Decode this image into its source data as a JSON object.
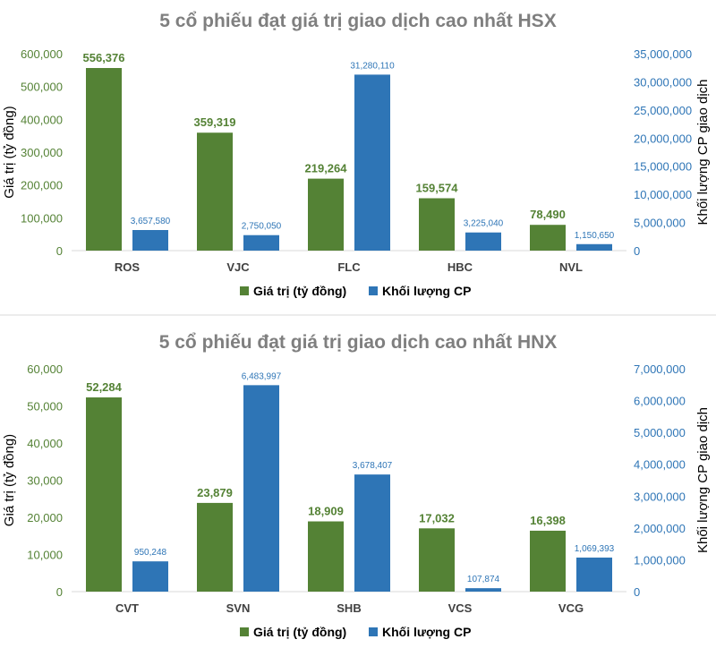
{
  "colors": {
    "value": "#548235",
    "volume": "#2e75b6",
    "left_axis": "#548235",
    "right_axis": "#2e75b6",
    "separator": "#d9d9d9"
  },
  "chart_data": [
    {
      "type": "bar",
      "title": "5 cổ phiếu đạt giá trị giao dịch cao nhất HSX",
      "categories": [
        "ROS",
        "VJC",
        "FLC",
        "HBC",
        "NVL"
      ],
      "series": [
        {
          "name": "Giá trị (tỷ đồng)",
          "axis": "left",
          "values": [
            556376,
            359319,
            219264,
            159574,
            78490
          ],
          "labels": [
            "556,376",
            "359,319",
            "219,264",
            "159,574",
            "78,490"
          ]
        },
        {
          "name": "Khối lượng CP",
          "axis": "right",
          "values": [
            3657580,
            2750050,
            31280110,
            3225040,
            1150650
          ],
          "labels": [
            "3,657,580",
            "2,750,050",
            "31,280,110",
            "3,225,040",
            "1,150,650"
          ]
        }
      ],
      "ylabel": "Giá trị (tỷ đồng)",
      "ylabel_right": "Khối lượng CP giao dịch",
      "ylim": [
        0,
        600000
      ],
      "ylim_right": [
        0,
        35000000
      ],
      "yticks": [
        "0",
        "100,000",
        "200,000",
        "300,000",
        "400,000",
        "500,000",
        "600,000"
      ],
      "yticks_right": [
        "0",
        "5,000,000",
        "10,000,000",
        "15,000,000",
        "20,000,000",
        "25,000,000",
        "30,000,000",
        "35,000,000"
      ],
      "grid": false,
      "legend": "bottom"
    },
    {
      "type": "bar",
      "title": "5 cổ phiếu đạt giá trị giao dịch cao nhất HNX",
      "categories": [
        "CVT",
        "SVN",
        "SHB",
        "VCS",
        "VCG"
      ],
      "series": [
        {
          "name": "Giá trị (tỷ đồng)",
          "axis": "left",
          "values": [
            52284,
            23879,
            18909,
            17032,
            16398
          ],
          "labels": [
            "52,284",
            "23,879",
            "18,909",
            "17,032",
            "16,398"
          ]
        },
        {
          "name": "Khối lượng CP",
          "axis": "right",
          "values": [
            950248,
            6483997,
            3678407,
            107874,
            1069393
          ],
          "labels": [
            "950,248",
            "6,483,997",
            "3,678,407",
            "107,874",
            "1,069,393"
          ]
        }
      ],
      "ylabel": "Giá trị (tỷ đồng)",
      "ylabel_right": "Khối lượng CP giao dịch",
      "ylim": [
        0,
        60000
      ],
      "ylim_right": [
        0,
        7000000
      ],
      "yticks": [
        "0",
        "10,000",
        "20,000",
        "30,000",
        "40,000",
        "50,000",
        "60,000"
      ],
      "yticks_right": [
        "0",
        "1,000,000",
        "2,000,000",
        "3,000,000",
        "4,000,000",
        "5,000,000",
        "6,000,000",
        "7,000,000"
      ],
      "grid": false,
      "legend": "bottom"
    }
  ]
}
